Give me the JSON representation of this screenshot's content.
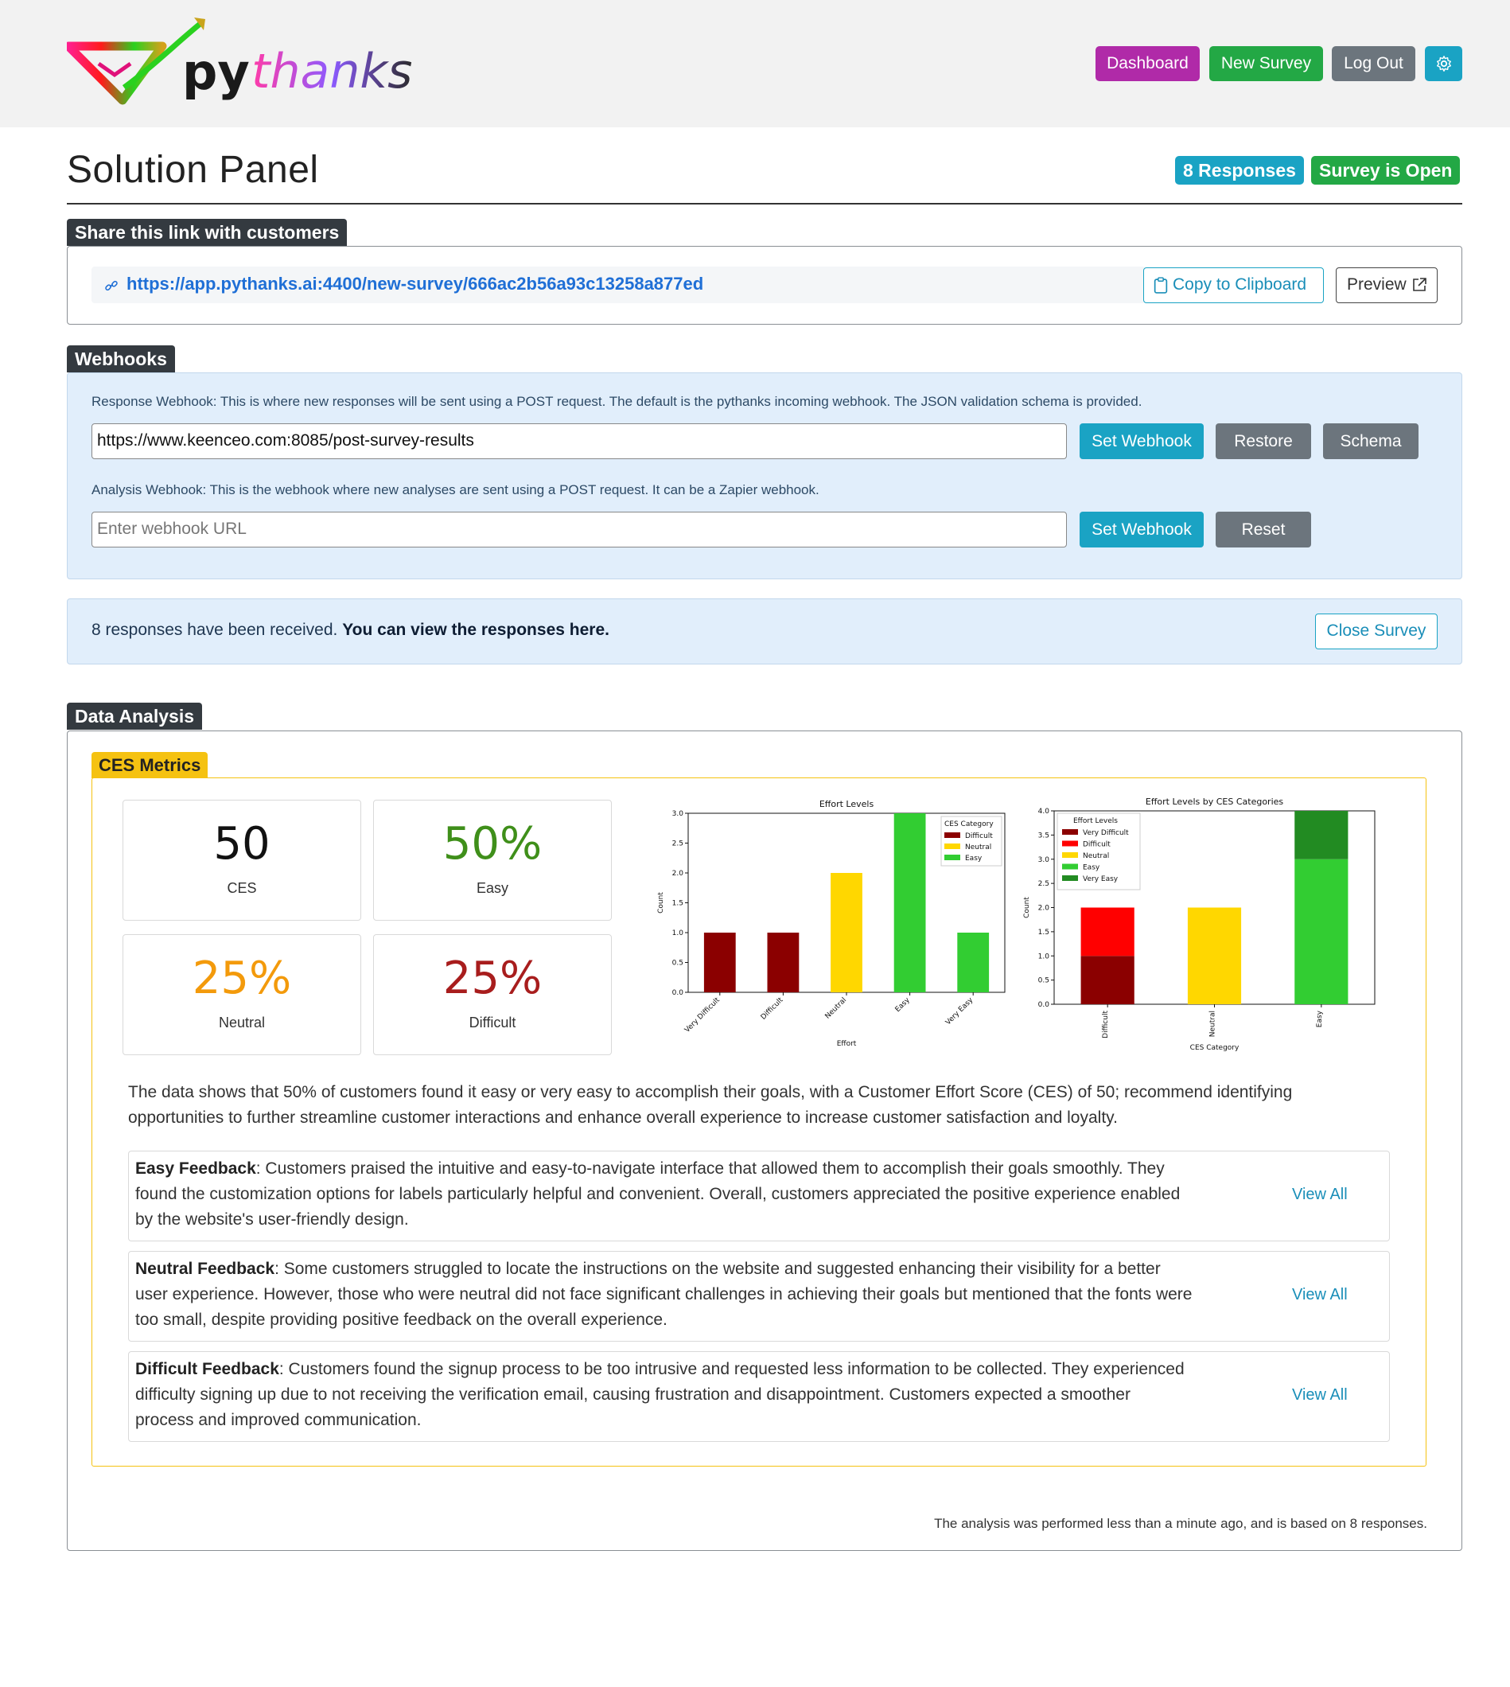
{
  "brand": {
    "name": "pythanks",
    "py": "py",
    "thanks": "thanks"
  },
  "nav": {
    "dashboard": "Dashboard",
    "new_survey": "New Survey",
    "log_out": "Log Out",
    "settings_icon": "gear-icon"
  },
  "page": {
    "title": "Solution Panel",
    "responses_badge": "8 Responses",
    "status_badge": "Survey is Open"
  },
  "share": {
    "label": "Share this link with customers",
    "url": "https://app.pythanks.ai:4400/new-survey/666ac2b56a93c13258a877ed",
    "copy_label": "Copy to Clipboard",
    "preview_label": "Preview"
  },
  "webhooks": {
    "label": "Webhooks",
    "response_hint": "Response Webhook: This is where new responses will be sent using a POST request. The default is the pythanks incoming webhook. The JSON validation schema is provided.",
    "response_value": "https://www.keenceo.com:8085/post-survey-results",
    "set_label": "Set Webhook",
    "restore_label": "Restore",
    "schema_label": "Schema",
    "analysis_hint": "Analysis Webhook: This is the webhook where new analyses are sent using a POST request. It can be a Zapier webhook.",
    "analysis_placeholder": "Enter webhook URL",
    "set_label_2": "Set Webhook",
    "reset_label": "Reset"
  },
  "responses_alert": {
    "text": "8 responses have been received. ",
    "link": "You can view the responses here.",
    "close_label": "Close Survey"
  },
  "analysis": {
    "label": "Data Analysis",
    "ces_label": "CES Metrics",
    "metrics": [
      {
        "value": "50",
        "label": "CES",
        "color": "#111111"
      },
      {
        "value": "50%",
        "label": "Easy",
        "color": "#3f8f1a"
      },
      {
        "value": "25%",
        "label": "Neutral",
        "color": "#f39a0b"
      },
      {
        "value": "25%",
        "label": "Difficult",
        "color": "#a81d1d"
      }
    ],
    "summary": "The data shows that 50% of customers found it easy or very easy to accomplish their goals, with a Customer Effort Score (CES) of 50; recommend identifying opportunities to further streamline customer interactions and enhance overall experience to increase customer satisfaction and loyalty.",
    "feedback": [
      {
        "title": "Easy Feedback",
        "text": ": Customers praised the intuitive and easy-to-navigate interface that allowed them to accomplish their goals smoothly. They found the customization options for labels particularly helpful and convenient. Overall, customers appreciated the positive experience enabled by the website's user-friendly design.",
        "link": "View All"
      },
      {
        "title": "Neutral Feedback",
        "text": ": Some customers struggled to locate the instructions on the website and suggested enhancing their visibility for a better user experience. However, those who were neutral did not face significant challenges in achieving their goals but mentioned that the fonts were too small, despite providing positive feedback on the overall experience.",
        "link": "View All"
      },
      {
        "title": "Difficult Feedback",
        "text": ": Customers found the signup process to be too intrusive and requested less information to be collected. They experienced difficulty signing up due to not receiving the verification email, causing frustration and disappointment. Customers expected a smoother process and improved communication.",
        "link": "View All"
      }
    ],
    "footer": "The analysis was performed less than a minute ago, and is based on 8 responses."
  },
  "chart_data": [
    {
      "type": "bar",
      "title": "Effort Levels",
      "xlabel": "Effort",
      "ylabel": "Count",
      "categories": [
        "Very Difficult",
        "Difficult",
        "Neutral",
        "Easy",
        "Very Easy"
      ],
      "values": [
        1,
        1,
        2,
        3,
        1
      ],
      "bar_colors": [
        "#8b0000",
        "#8b0000",
        "#ffd700",
        "#32cd32",
        "#32cd32"
      ],
      "ylim": [
        0,
        3.0
      ],
      "yticks": [
        "0.0",
        "0.5",
        "1.0",
        "1.5",
        "2.0",
        "2.5",
        "3.0"
      ],
      "legend": {
        "title": "CES Category",
        "placement": "top-right",
        "entries": [
          {
            "name": "Difficult",
            "color": "#8b0000"
          },
          {
            "name": "Neutral",
            "color": "#ffd700"
          },
          {
            "name": "Easy",
            "color": "#32cd32"
          }
        ]
      }
    },
    {
      "type": "bar",
      "stacked": true,
      "title": "Effort Levels by CES Categories",
      "xlabel": "CES Category",
      "ylabel": "Count",
      "categories": [
        "Difficult",
        "Neutral",
        "Easy"
      ],
      "series": [
        {
          "name": "Very Difficult",
          "color": "#8b0000",
          "values": [
            1,
            0,
            0
          ]
        },
        {
          "name": "Difficult",
          "color": "#ff0000",
          "values": [
            1,
            0,
            0
          ]
        },
        {
          "name": "Neutral",
          "color": "#ffd700",
          "values": [
            0,
            2,
            0
          ]
        },
        {
          "name": "Easy",
          "color": "#32cd32",
          "values": [
            0,
            0,
            3
          ]
        },
        {
          "name": "Very Easy",
          "color": "#228b22",
          "values": [
            0,
            0,
            1
          ]
        }
      ],
      "ylim": [
        0,
        4.0
      ],
      "yticks": [
        "0.0",
        "0.5",
        "1.0",
        "1.5",
        "2.0",
        "2.5",
        "3.0",
        "3.5",
        "4.0"
      ],
      "legend": {
        "title": "Effort Levels",
        "placement": "top-left"
      }
    }
  ]
}
